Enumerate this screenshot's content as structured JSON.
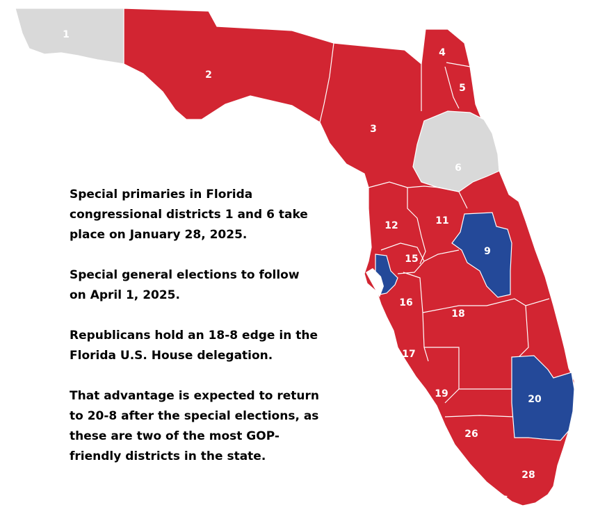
{
  "colors": {
    "republican": "#D22532",
    "democrat": "#244999",
    "vacant": "#D9D9D9",
    "border": "#FFFFFF"
  },
  "districts": [
    {
      "id": "1",
      "status": "vacant"
    },
    {
      "id": "2",
      "status": "republican"
    },
    {
      "id": "3",
      "status": "republican"
    },
    {
      "id": "4",
      "status": "republican"
    },
    {
      "id": "5",
      "status": "republican"
    },
    {
      "id": "6",
      "status": "vacant"
    },
    {
      "id": "9",
      "status": "democrat"
    },
    {
      "id": "11",
      "status": "republican"
    },
    {
      "id": "12",
      "status": "republican"
    },
    {
      "id": "15",
      "status": "republican"
    },
    {
      "id": "16",
      "status": "republican"
    },
    {
      "id": "17",
      "status": "republican"
    },
    {
      "id": "18",
      "status": "republican"
    },
    {
      "id": "19",
      "status": "republican"
    },
    {
      "id": "20",
      "status": "democrat"
    },
    {
      "id": "26",
      "status": "republican"
    },
    {
      "id": "28",
      "status": "republican"
    }
  ],
  "text": {
    "paragraph_1": "Special primaries in Florida congressional districts 1 and 6 take place on January 28, 2025.",
    "paragraph_2": "Special general elections to follow on April 1, 2025.",
    "paragraph_3": "Republicans hold an 18-8 edge in the Florida U.S. House delegation.",
    "paragraph_4": "That advantage is expected to return to 20-8 after the special elections, as these are two of the most GOP-friendly districts in the state."
  }
}
